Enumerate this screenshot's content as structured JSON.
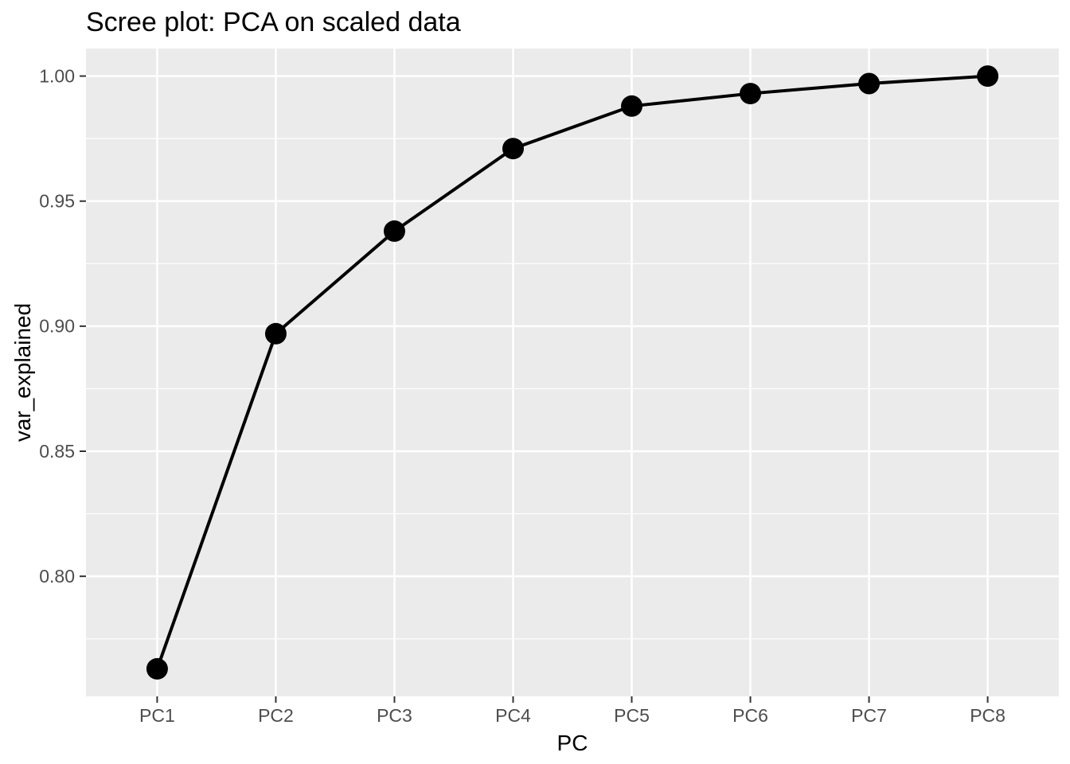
{
  "title": "Scree plot: PCA on scaled data",
  "chart_data": {
    "type": "line",
    "title": "Scree plot: PCA on scaled data",
    "xlabel": "PC",
    "ylabel": "var_explained",
    "categories": [
      "PC1",
      "PC2",
      "PC3",
      "PC4",
      "PC5",
      "PC6",
      "PC7",
      "PC8"
    ],
    "series": [
      {
        "name": "var_explained",
        "values": [
          0.763,
          0.897,
          0.938,
          0.971,
          0.988,
          0.993,
          0.997,
          1.0
        ]
      }
    ],
    "y_ticks": [
      0.8,
      0.85,
      0.9,
      0.95,
      1.0
    ],
    "y_minor_ticks": [
      0.775,
      0.825,
      0.875,
      0.925,
      0.975
    ],
    "y_tick_decimals": 2,
    "ylim": [
      0.752,
      1.011
    ],
    "grid": true,
    "legend": "none",
    "style": {
      "plot_background": "#FFFFFF",
      "panel_background": "#EBEBEB",
      "grid_color": "#FFFFFF",
      "line_color": "#000000",
      "point_color": "#000000",
      "tick_mark_color": "#333333",
      "tick_label_color": "#4D4D4D",
      "axis_title_color": "#000000",
      "title_color": "#000000"
    }
  }
}
